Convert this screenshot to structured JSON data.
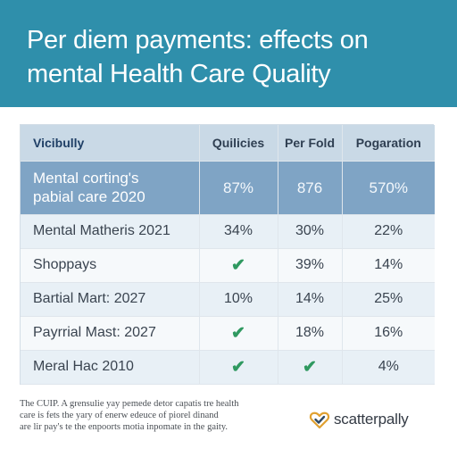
{
  "header": {
    "title_line1": "Per diem payments: effects on",
    "title_line2": "mental Health Care Quality",
    "background": "#2f8fab"
  },
  "table": {
    "columns": [
      "Vicibully",
      "Quilicies",
      "Per Fold",
      "Pogaration"
    ],
    "featured_row": {
      "label_line1": "Mental corting's",
      "label_line2": "pabial care 2020",
      "values": [
        "87%",
        "876",
        "570%"
      ],
      "background": "#7fa4c5"
    },
    "rows": [
      {
        "label": "Mental Matheris 2021",
        "values": [
          "34%",
          "30%",
          "22%"
        ]
      },
      {
        "label": "Shoppays",
        "values": [
          "check",
          "39%",
          "14%"
        ]
      },
      {
        "label": "Bartial Mart: 2027",
        "values": [
          "10%",
          "14%",
          "25%"
        ]
      },
      {
        "label": "Payrrial Mast: 2027",
        "values": [
          "check",
          "18%",
          "16%"
        ]
      },
      {
        "label": "Meral Hac 2010",
        "values": [
          "check",
          "check",
          "4%"
        ]
      }
    ],
    "check_color": "#2f9960"
  },
  "footnote": {
    "line1": "The CUIP. A grensulie yay pemede detor capatis tre health",
    "line2": "care is fets the yary of enerw edeuce of piorel dinand",
    "line3": "are lir pay's te the enpoorts motia inpomate in the gaity."
  },
  "brand": {
    "name": "scatterpally",
    "icon": "heart-check-icon",
    "colors": {
      "heart": "#e0a030",
      "check": "#2f4a66"
    }
  }
}
